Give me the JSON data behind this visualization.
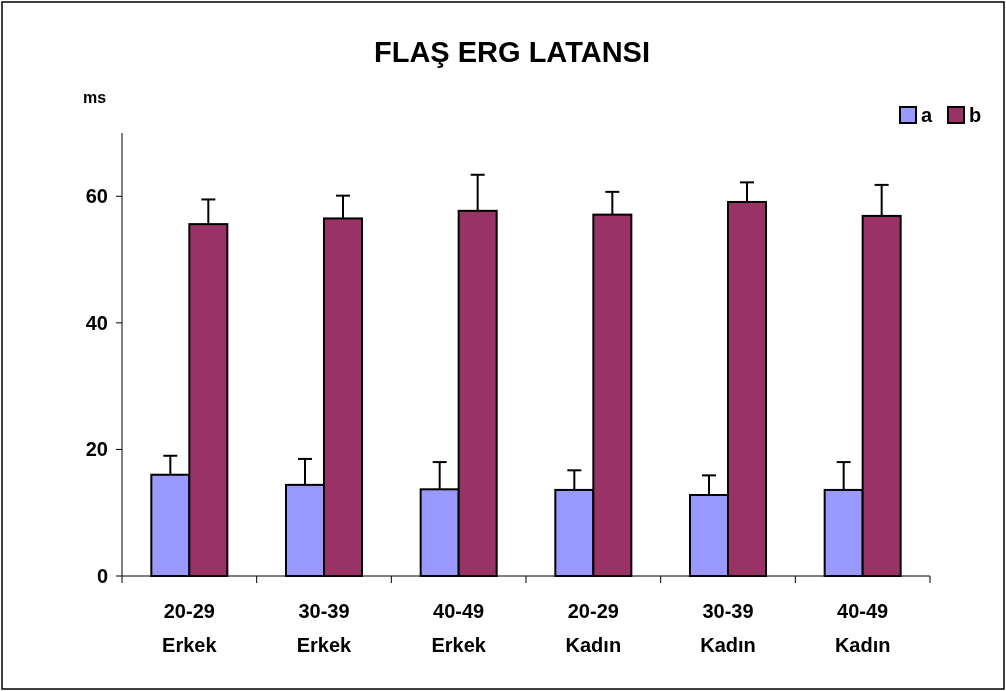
{
  "chart_data": {
    "type": "bar",
    "title": "FLAŞ ERG LATANSI",
    "ylabel": "ms",
    "categories": [
      "20-29\nErkek",
      "30-39\nErkek",
      "40-49\nErkek",
      "20-29\nKadın",
      "30-39\nKadın",
      "40-49\nKadın"
    ],
    "series": [
      {
        "name": "a",
        "color": "#9999ff",
        "values": [
          16,
          14.4,
          13.7,
          13.6,
          12.8,
          13.6
        ],
        "errors": [
          [
            16,
            19
          ],
          [
            14.4,
            18.5
          ],
          [
            13.7,
            18
          ],
          [
            13.6,
            16.7
          ],
          [
            12.8,
            15.9
          ],
          [
            13.6,
            18
          ]
        ]
      },
      {
        "name": "b",
        "color": "#993366",
        "values": [
          55.6,
          56.5,
          57.7,
          57.1,
          59.1,
          56.9
        ],
        "errors": [
          [
            55.6,
            59.5
          ],
          [
            56.5,
            60.1
          ],
          [
            57.7,
            63.4
          ],
          [
            57.1,
            60.7
          ],
          [
            59.1,
            62.2
          ],
          [
            56.9,
            61.8
          ]
        ]
      }
    ],
    "ylim": [
      0,
      70
    ],
    "yticks": [
      0,
      20,
      40,
      60
    ],
    "grid": false,
    "legend": "top right"
  }
}
